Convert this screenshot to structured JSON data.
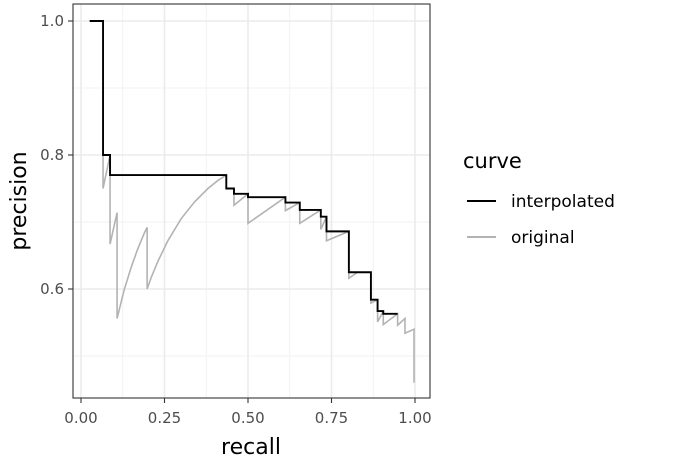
{
  "chart_data": {
    "type": "line",
    "xlabel": "recall",
    "ylabel": "precision",
    "xlim": [
      0,
      1
    ],
    "ylim": [
      0.45,
      1.02
    ],
    "x_ticks": [
      "0.00",
      "0.25",
      "0.50",
      "0.75",
      "1.00"
    ],
    "x_tick_values": [
      0,
      0.25,
      0.5,
      0.75,
      1
    ],
    "y_ticks": [
      "0.6",
      "0.8",
      "1.0"
    ],
    "y_tick_values": [
      0.6,
      0.8,
      1.0
    ],
    "grid": true,
    "legend": {
      "title": "curve",
      "position": "right"
    },
    "series": [
      {
        "name": "interpolated",
        "color": "#000000",
        "x": [
          0.026,
          0.066,
          0.066,
          0.087,
          0.087,
          0.435,
          0.435,
          0.458,
          0.458,
          0.5,
          0.5,
          0.612,
          0.612,
          0.655,
          0.655,
          0.718,
          0.718,
          0.735,
          0.735,
          0.802,
          0.802,
          0.868,
          0.868,
          0.888,
          0.888,
          0.905,
          0.905,
          0.948
        ],
        "y": [
          1.0,
          1.0,
          0.8,
          0.8,
          0.77,
          0.77,
          0.75,
          0.75,
          0.742,
          0.742,
          0.737,
          0.737,
          0.729,
          0.729,
          0.718,
          0.718,
          0.708,
          0.708,
          0.686,
          0.686,
          0.625,
          0.625,
          0.584,
          0.584,
          0.567,
          0.567,
          0.563,
          0.563
        ]
      },
      {
        "name": "original",
        "color": "#b3b3b3",
        "x": [
          0.066,
          0.066,
          0.087,
          0.087,
          0.108,
          0.108,
          0.115,
          0.13,
          0.15,
          0.17,
          0.19,
          0.198,
          0.198,
          0.21,
          0.23,
          0.26,
          0.3,
          0.34,
          0.38,
          0.41,
          0.435,
          0.435,
          0.458,
          0.458,
          0.5,
          0.5,
          0.612,
          0.612,
          0.655,
          0.655,
          0.718,
          0.718,
          0.735,
          0.735,
          0.802,
          0.802,
          0.828,
          0.868,
          0.868,
          0.888,
          0.888,
          0.905,
          0.905,
          0.948,
          0.948,
          0.97,
          0.97,
          0.997,
          0.997
        ],
        "y": [
          0.8,
          0.75,
          0.8,
          0.667,
          0.714,
          0.556,
          0.57,
          0.6,
          0.632,
          0.66,
          0.684,
          0.692,
          0.6,
          0.617,
          0.641,
          0.672,
          0.705,
          0.73,
          0.75,
          0.762,
          0.77,
          0.75,
          0.75,
          0.725,
          0.742,
          0.698,
          0.737,
          0.717,
          0.729,
          0.698,
          0.718,
          0.689,
          0.708,
          0.672,
          0.686,
          0.616,
          0.625,
          0.625,
          0.579,
          0.584,
          0.551,
          0.567,
          0.547,
          0.563,
          0.546,
          0.556,
          0.534,
          0.54,
          0.46
        ]
      }
    ]
  }
}
